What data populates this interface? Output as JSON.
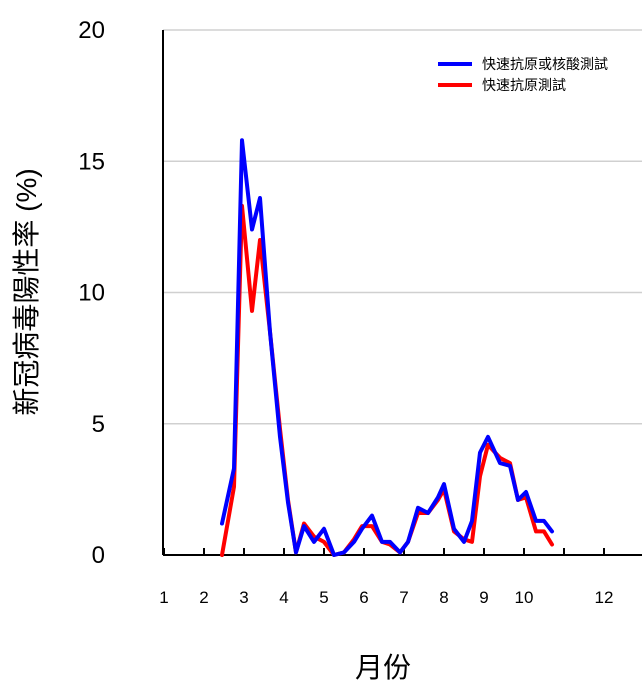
{
  "chart_data": {
    "type": "line",
    "xlabel": "月份",
    "ylabel": "新冠病毒陽性率 (%)",
    "xlim": [
      1,
      13
    ],
    "ylim": [
      0,
      20
    ],
    "x_ticks": [
      1,
      2,
      3,
      4,
      5,
      6,
      7,
      8,
      9,
      10,
      12
    ],
    "y_ticks": [
      0,
      5,
      10,
      15,
      20
    ],
    "grid": "horizontal",
    "legend_position": "top-right",
    "series": [
      {
        "name": "快速抗原或核酸測試",
        "color": "#0000ff",
        "points": [
          [
            2.45,
            1.2
          ],
          [
            2.75,
            3.3
          ],
          [
            2.95,
            15.8
          ],
          [
            3.2,
            12.4
          ],
          [
            3.4,
            13.6
          ],
          [
            3.65,
            8.5
          ],
          [
            3.9,
            4.5
          ],
          [
            4.1,
            2.0
          ],
          [
            4.3,
            0.1
          ],
          [
            4.5,
            1.1
          ],
          [
            4.75,
            0.5
          ],
          [
            5.0,
            1.0
          ],
          [
            5.25,
            0.0
          ],
          [
            5.5,
            0.1
          ],
          [
            5.75,
            0.5
          ],
          [
            5.95,
            1.0
          ],
          [
            6.2,
            1.5
          ],
          [
            6.45,
            0.5
          ],
          [
            6.65,
            0.5
          ],
          [
            6.9,
            0.1
          ],
          [
            7.1,
            0.5
          ],
          [
            7.35,
            1.8
          ],
          [
            7.6,
            1.6
          ],
          [
            7.85,
            2.2
          ],
          [
            8.0,
            2.7
          ],
          [
            8.25,
            1.0
          ],
          [
            8.5,
            0.5
          ],
          [
            8.7,
            1.3
          ],
          [
            8.9,
            3.9
          ],
          [
            9.1,
            4.5
          ],
          [
            9.4,
            3.5
          ],
          [
            9.65,
            3.4
          ],
          [
            9.85,
            2.1
          ],
          [
            10.05,
            2.4
          ],
          [
            10.3,
            1.3
          ],
          [
            10.5,
            1.3
          ],
          [
            10.7,
            0.9
          ]
        ]
      },
      {
        "name": "快速抗原測試",
        "color": "#ff0000",
        "points": [
          [
            2.45,
            0.0
          ],
          [
            2.75,
            2.6
          ],
          [
            2.95,
            13.3
          ],
          [
            3.2,
            9.3
          ],
          [
            3.4,
            12.0
          ],
          [
            3.65,
            8.5
          ],
          [
            3.9,
            4.8
          ],
          [
            4.1,
            2.1
          ],
          [
            4.3,
            0.1
          ],
          [
            4.5,
            1.2
          ],
          [
            4.75,
            0.7
          ],
          [
            5.0,
            0.5
          ],
          [
            5.25,
            0.0
          ],
          [
            5.5,
            0.1
          ],
          [
            5.75,
            0.6
          ],
          [
            5.95,
            1.1
          ],
          [
            6.2,
            1.1
          ],
          [
            6.45,
            0.5
          ],
          [
            6.65,
            0.4
          ],
          [
            6.9,
            0.1
          ],
          [
            7.1,
            0.5
          ],
          [
            7.35,
            1.6
          ],
          [
            7.6,
            1.6
          ],
          [
            7.85,
            2.1
          ],
          [
            8.0,
            2.5
          ],
          [
            8.25,
            0.9
          ],
          [
            8.5,
            0.6
          ],
          [
            8.7,
            0.5
          ],
          [
            8.9,
            3.0
          ],
          [
            9.1,
            4.2
          ],
          [
            9.4,
            3.7
          ],
          [
            9.65,
            3.5
          ],
          [
            9.85,
            2.1
          ],
          [
            10.05,
            2.2
          ],
          [
            10.3,
            0.9
          ],
          [
            10.5,
            0.9
          ],
          [
            10.7,
            0.4
          ]
        ]
      }
    ]
  }
}
